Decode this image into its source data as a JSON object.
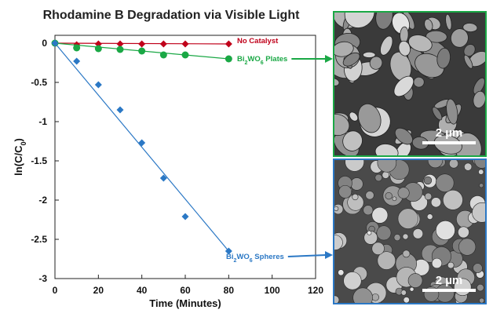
{
  "chart_data": {
    "type": "scatter",
    "title": "Rhodamine B Degradation via Visible Light",
    "xlabel": "Time (Minutes)",
    "ylabel_main": "ln(C/C",
    "ylabel_sub": "0",
    "ylabel_close": ")",
    "xlim": [
      0,
      120
    ],
    "ylim": [
      -3,
      0.1
    ],
    "xticks": [
      "0",
      "20",
      "40",
      "60",
      "80",
      "100",
      "120"
    ],
    "yticks": [
      "0",
      "-0.5",
      "-1",
      "-1.5",
      "-2",
      "-2.5",
      "-3"
    ],
    "grid": false,
    "series": [
      {
        "label_main": "No Catalyst",
        "label_sub": "",
        "label_rest": "",
        "color": "#c0001a",
        "marker": "diamond",
        "x": [
          0,
          10,
          20,
          30,
          40,
          50,
          60,
          80
        ],
        "y": [
          0,
          -0.02,
          -0.01,
          -0.01,
          -0.01,
          -0.01,
          -0.01,
          -0.01
        ],
        "fit": [
          [
            0,
            0
          ],
          [
            80,
            -0.01
          ]
        ]
      },
      {
        "label_main": "Bi",
        "label_sub": "2",
        "label_mid": "WO",
        "label_sub2": "6",
        "label_rest": " Plates",
        "color": "#1aa845",
        "marker": "circle",
        "x": [
          0,
          10,
          20,
          30,
          40,
          50,
          60,
          80
        ],
        "y": [
          0,
          -0.06,
          -0.07,
          -0.08,
          -0.1,
          -0.15,
          -0.15,
          -0.2
        ],
        "fit": [
          [
            0,
            0
          ],
          [
            80,
            -0.2
          ]
        ]
      },
      {
        "label_main": "Bi",
        "label_sub": "2",
        "label_mid": "WO",
        "label_sub2": "6",
        "label_rest": " Spheres",
        "color": "#2b78c5",
        "marker": "diamond",
        "x": [
          0,
          10,
          20,
          30,
          40,
          50,
          60,
          80
        ],
        "y": [
          0,
          -0.23,
          -0.53,
          -0.85,
          -1.27,
          -1.72,
          -2.21,
          -2.65
        ],
        "fit": [
          [
            0,
            0
          ],
          [
            80,
            -2.65
          ]
        ]
      }
    ]
  },
  "images": [
    {
      "name": "plates-sem",
      "border_color": "#1aa845",
      "scale_label": "2 µm"
    },
    {
      "name": "spheres-sem",
      "border_color": "#2b78c5",
      "scale_label": "2 µm"
    }
  ]
}
